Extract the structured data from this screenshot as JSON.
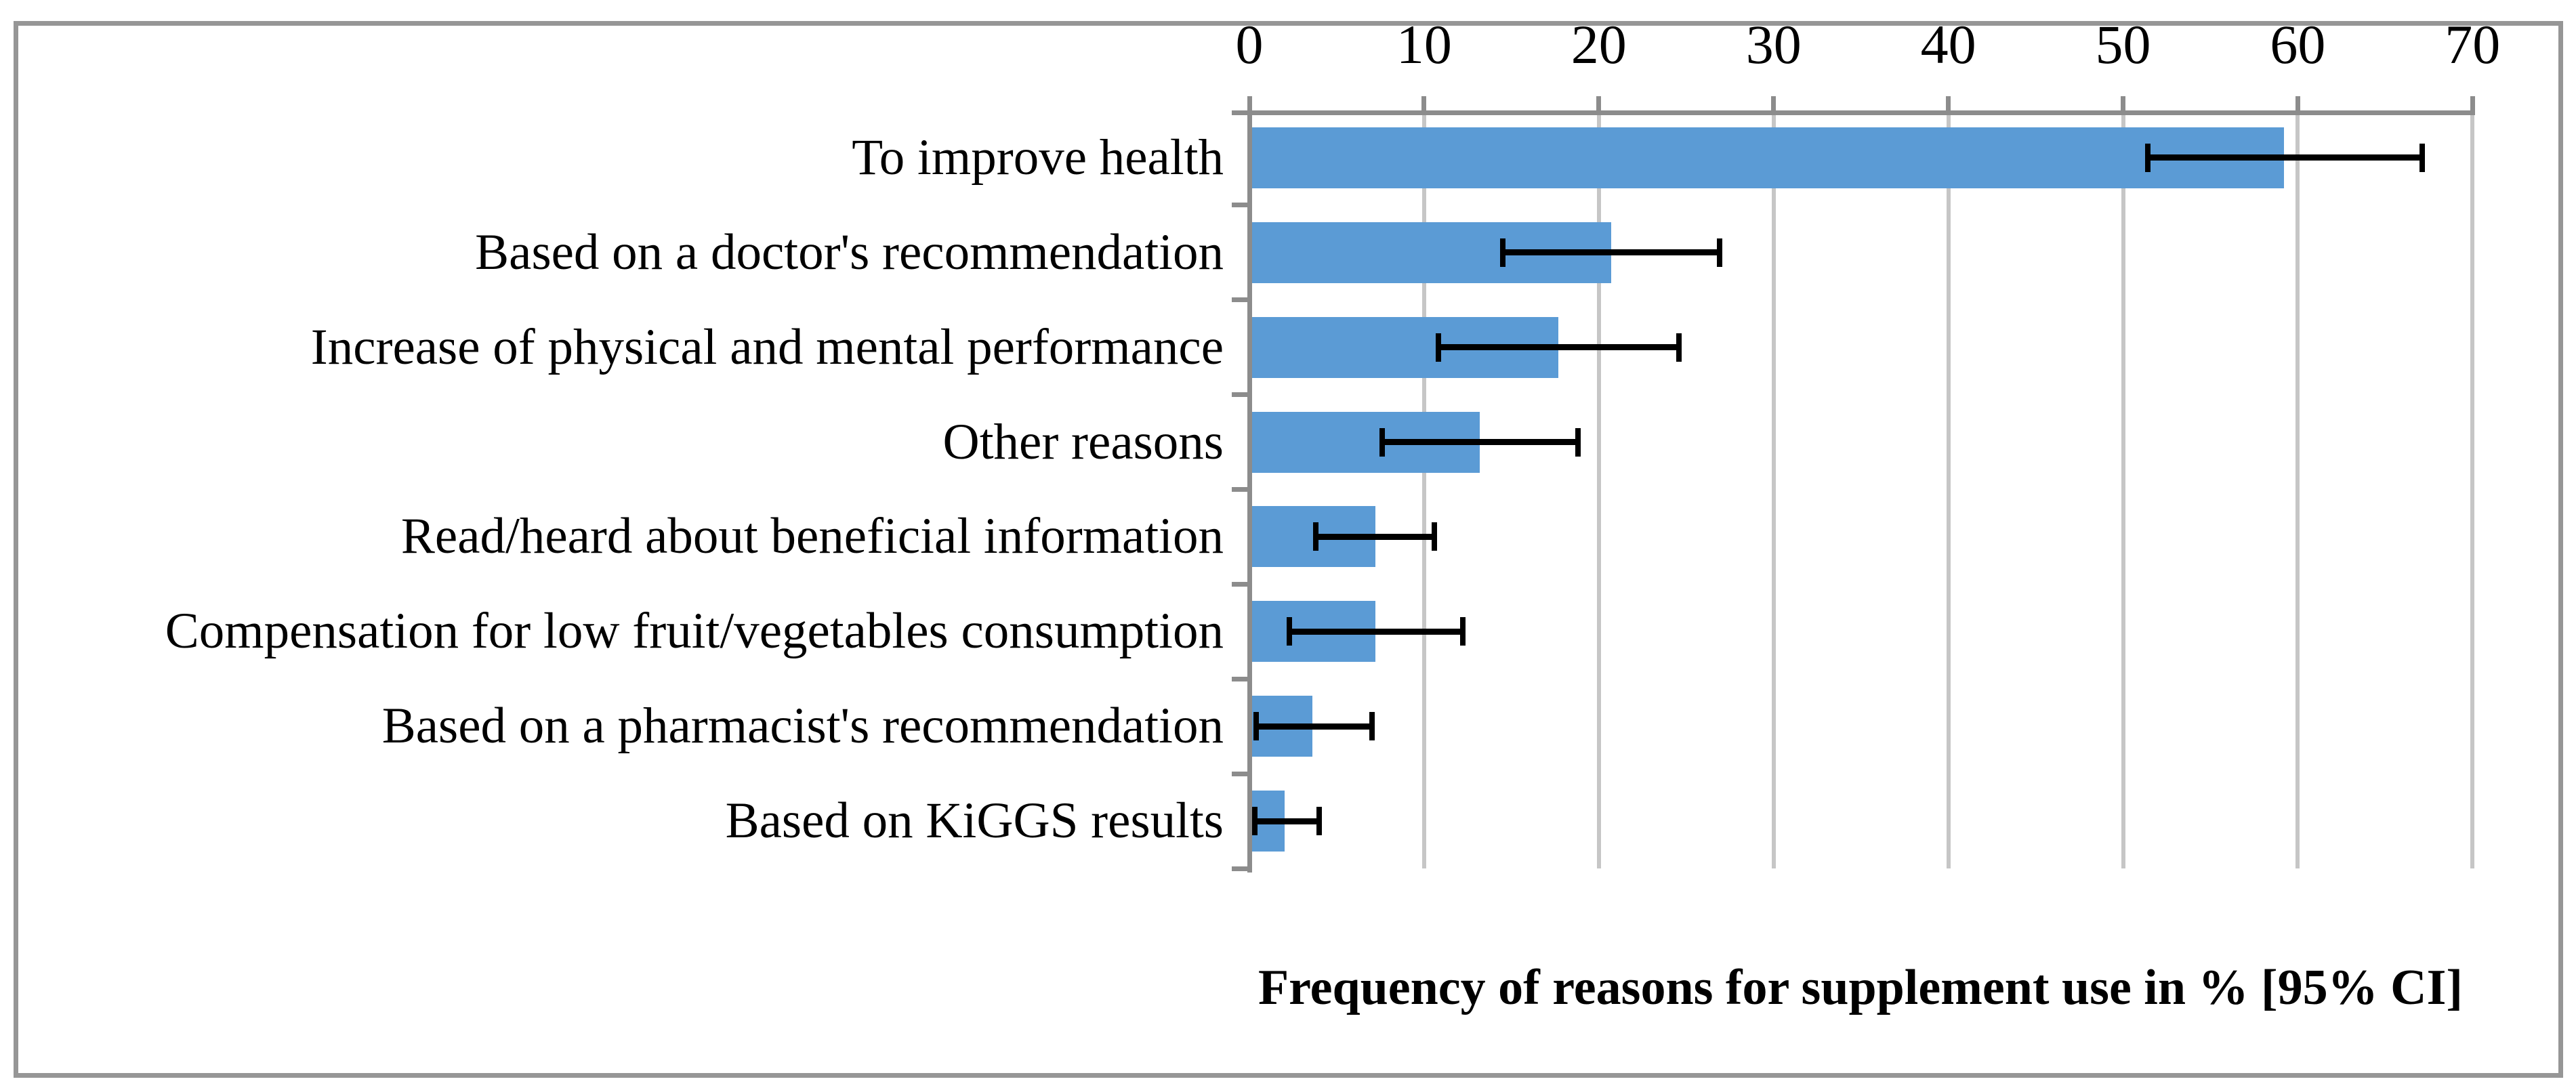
{
  "figure": {
    "background_color": "#ffffff",
    "border_color": "#969696"
  },
  "chart_data": {
    "type": "bar",
    "orientation": "horizontal",
    "title": "Frequency of reasons for supplement use in % [95% CI]",
    "xlabel": "",
    "ylabel": "",
    "categories": [
      "To improve health",
      "Based on a doctor's recommendation",
      "Increase of physical and mental performance",
      "Other reasons",
      "Read/heard about beneficial information",
      "Compensation for low fruit/vegetables consumption",
      "Based on a pharmacist's recommendation",
      "Based on KiGGS results"
    ],
    "series": [
      {
        "name": "Frequency of reasons for supplement use in %",
        "values": [
          59.2,
          20.7,
          17.7,
          13.2,
          7.2,
          7.2,
          3.6,
          2.0
        ],
        "ci_low": [
          51.4,
          14.5,
          10.8,
          7.6,
          3.8,
          2.3,
          0.4,
          0.3
        ],
        "ci_high": [
          67.1,
          26.9,
          24.6,
          18.8,
          10.6,
          12.2,
          7.0,
          4.0
        ]
      }
    ],
    "x_axis": {
      "position": "top",
      "min": 0,
      "max": 70,
      "tick_labels": [
        "0",
        "10",
        "20",
        "30",
        "40",
        "50",
        "60",
        "70"
      ],
      "tick_values": [
        0,
        10,
        20,
        30,
        40,
        50,
        60,
        70
      ]
    },
    "grid": "vertical-major",
    "legend": "none",
    "bar_color": "#5B9BD5",
    "error_bar_color": "#000000",
    "axis_color": "#8C8C8C",
    "gridline_color": "#C6C6C6"
  }
}
